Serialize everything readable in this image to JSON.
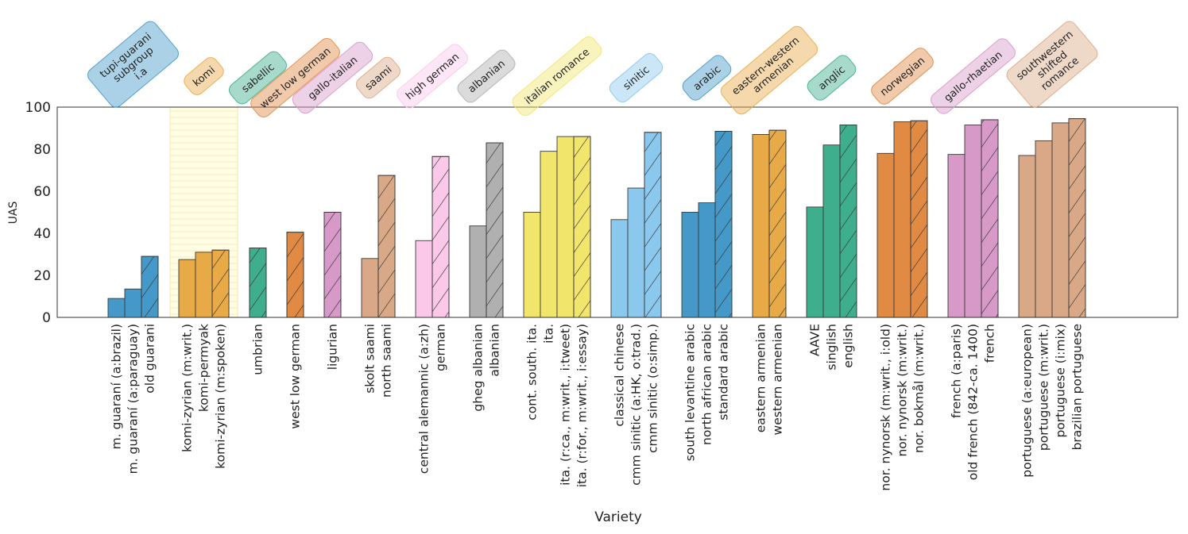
{
  "chart_data": {
    "type": "bar",
    "xlabel": "Variety",
    "ylabel": "UAS",
    "ylim": [
      0,
      100
    ],
    "yticks": [
      0,
      20,
      40,
      60,
      80,
      100
    ],
    "grid": false,
    "highlighted_group": "komi",
    "groups": [
      {
        "name": "tupi-guarani subgroup i.a",
        "label_lines": [
          "tupi-guarani",
          "subgroup",
          "i.a"
        ],
        "color": "#4499c9",
        "bars": [
          {
            "label": "m. guaraní (a:brazil)",
            "value": 9,
            "hatched": false
          },
          {
            "label": "m. guaraní (a:paraguay)",
            "value": 13.5,
            "hatched": false
          },
          {
            "label": "old guarani",
            "value": 29,
            "hatched": true
          }
        ]
      },
      {
        "name": "komi",
        "label_lines": [
          "komi"
        ],
        "color": "#e8aa47",
        "bars": [
          {
            "label": "komi-zyrian (m:writ.)",
            "value": 27.5,
            "hatched": false
          },
          {
            "label": "komi-permyak",
            "value": 31,
            "hatched": false
          },
          {
            "label": "komi-zyrian (m:spoken)",
            "value": 32,
            "hatched": true
          }
        ]
      },
      {
        "name": "sabellic",
        "label_lines": [
          "sabellic"
        ],
        "color": "#3fae8c",
        "bars": [
          {
            "label": "umbrian",
            "value": 33,
            "hatched": true
          }
        ]
      },
      {
        "name": "west low german",
        "label_lines": [
          "west low german"
        ],
        "color": "#e08a44",
        "bars": [
          {
            "label": "west low german",
            "value": 40.5,
            "hatched": true
          }
        ]
      },
      {
        "name": "gallo-italian",
        "label_lines": [
          "gallo-italian"
        ],
        "color": "#d699c8",
        "bars": [
          {
            "label": "ligurian",
            "value": 50,
            "hatched": true
          }
        ]
      },
      {
        "name": "saami",
        "label_lines": [
          "saami"
        ],
        "color": "#d9a886",
        "bars": [
          {
            "label": "skolt saami",
            "value": 28,
            "hatched": false
          },
          {
            "label": "north saami",
            "value": 67.5,
            "hatched": true
          }
        ]
      },
      {
        "name": "high german",
        "label_lines": [
          "high german"
        ],
        "color": "#fbc8e9",
        "bars": [
          {
            "label": "central alemannic (a:zh)",
            "value": 36.5,
            "hatched": false
          },
          {
            "label": "german",
            "value": 76.5,
            "hatched": true
          }
        ]
      },
      {
        "name": "albanian",
        "label_lines": [
          "albanian"
        ],
        "color": "#b0b0b0",
        "bars": [
          {
            "label": "gheg albanian",
            "value": 43.5,
            "hatched": false
          },
          {
            "label": "albanian",
            "value": 83,
            "hatched": true
          }
        ]
      },
      {
        "name": "italian romance",
        "label_lines": [
          "italian romance"
        ],
        "color": "#f1e56c",
        "bars": [
          {
            "label": "cont. south. ita.",
            "value": 50,
            "hatched": false
          },
          {
            "label": "ita.",
            "value": 79,
            "hatched": false
          },
          {
            "label": "ita. (r:ca., m:writ., i:tweet)",
            "value": 86,
            "hatched": false
          },
          {
            "label": "ita. (r:for., m:writ., i:essay)",
            "value": 86,
            "hatched": true
          }
        ]
      },
      {
        "name": "sinitic",
        "label_lines": [
          "sinitic"
        ],
        "color": "#8ac8ee",
        "bars": [
          {
            "label": "classical chinese",
            "value": 46.5,
            "hatched": false
          },
          {
            "label": "cmm sinitic (a:HK, o:trad.)",
            "value": 61.5,
            "hatched": false
          },
          {
            "label": "cmm sinitic (o:simp.)",
            "value": 88,
            "hatched": true
          }
        ]
      },
      {
        "name": "arabic",
        "label_lines": [
          "arabic"
        ],
        "color": "#4499c9",
        "bars": [
          {
            "label": "south levantine arabic",
            "value": 50,
            "hatched": false
          },
          {
            "label": "north african arabic",
            "value": 54.5,
            "hatched": false
          },
          {
            "label": "standard arabic",
            "value": 88.5,
            "hatched": true
          }
        ]
      },
      {
        "name": "eastern-western armenian",
        "label_lines": [
          "eastern-western",
          "armenian"
        ],
        "color": "#e8aa47",
        "bars": [
          {
            "label": "eastern armenian",
            "value": 87,
            "hatched": false
          },
          {
            "label": "western armenian",
            "value": 89,
            "hatched": true
          }
        ]
      },
      {
        "name": "anglic",
        "label_lines": [
          "anglic"
        ],
        "color": "#3fae8c",
        "bars": [
          {
            "label": "AAVE",
            "value": 52.5,
            "hatched": false
          },
          {
            "label": "singlish",
            "value": 82,
            "hatched": false
          },
          {
            "label": "english",
            "value": 91.5,
            "hatched": true
          }
        ]
      },
      {
        "name": "norwegian",
        "label_lines": [
          "norwegian"
        ],
        "color": "#e08a44",
        "bars": [
          {
            "label": "nor. nynorsk (m:writ., i:old)",
            "value": 78,
            "hatched": false
          },
          {
            "label": "nor. nynorsk (m:writ.)",
            "value": 93,
            "hatched": false
          },
          {
            "label": "nor. bokmål (m:writ.)",
            "value": 93.5,
            "hatched": true
          }
        ]
      },
      {
        "name": "gallo-rhaetian",
        "label_lines": [
          "gallo-rhaetian"
        ],
        "color": "#d699c8",
        "bars": [
          {
            "label": "french (a:paris)",
            "value": 77.5,
            "hatched": false
          },
          {
            "label": "old french (842-ca. 1400)",
            "value": 91.5,
            "hatched": false
          },
          {
            "label": "french",
            "value": 94,
            "hatched": true
          }
        ]
      },
      {
        "name": "southwestern shifted romance",
        "label_lines": [
          "southwestern",
          "shifted",
          "romance"
        ],
        "color": "#d9a886",
        "bars": [
          {
            "label": "portuguese (a:european)",
            "value": 77,
            "hatched": false
          },
          {
            "label": "portuguese (m:writ.)",
            "value": 84,
            "hatched": false
          },
          {
            "label": "portuguese (i:mix)",
            "value": 92.5,
            "hatched": false
          },
          {
            "label": "brazilian portuguese",
            "value": 94.5,
            "hatched": true
          }
        ]
      }
    ]
  }
}
